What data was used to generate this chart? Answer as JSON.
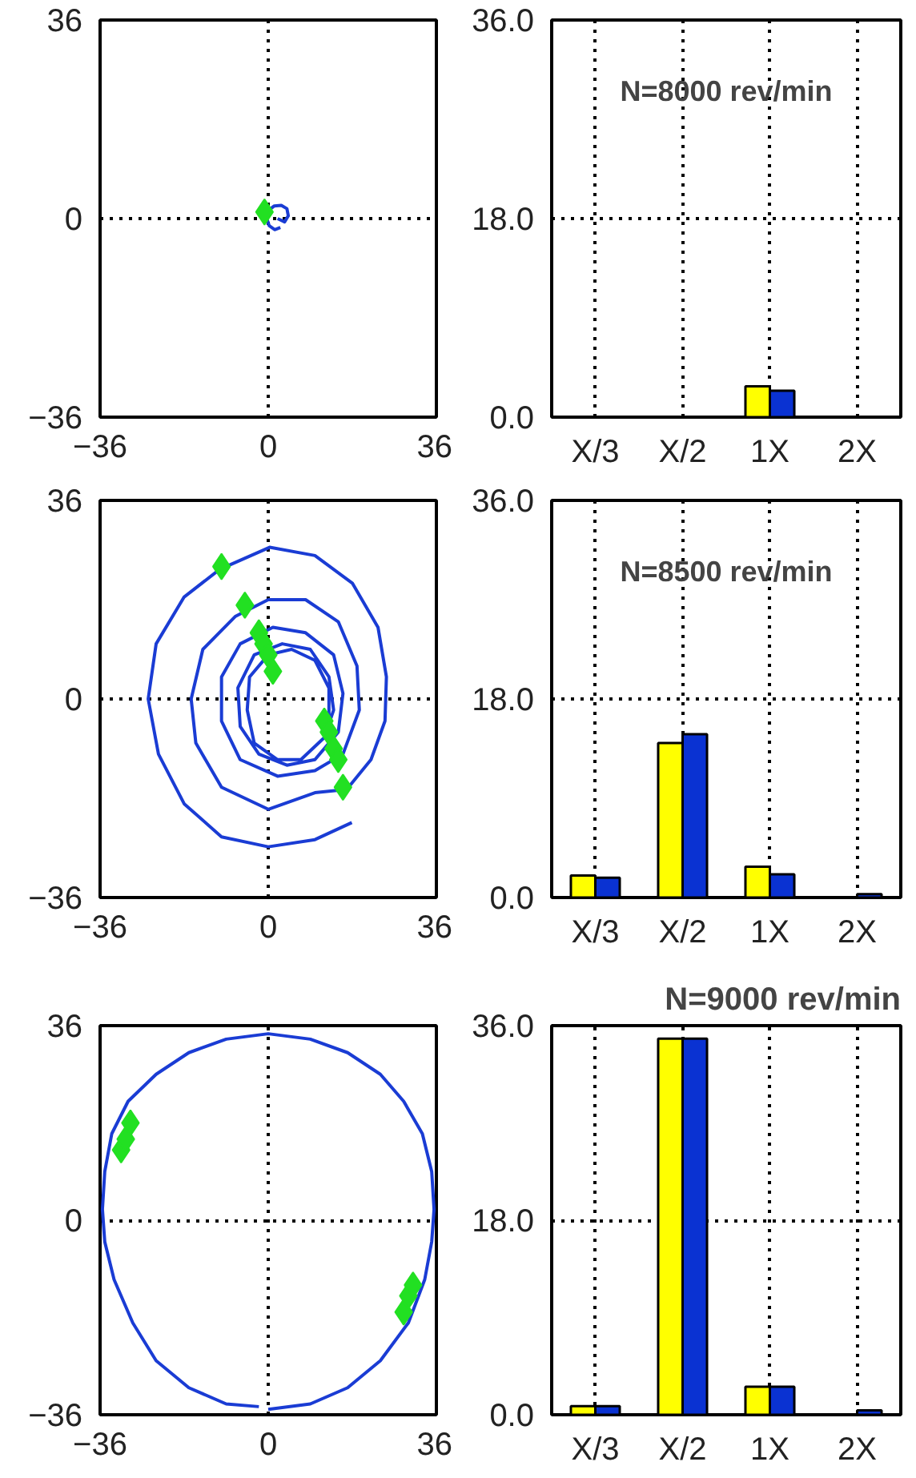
{
  "chart_data": [
    {
      "type": "line",
      "xlim": [
        -36,
        36
      ],
      "ylim": [
        -36,
        36
      ],
      "xticks": [
        -36,
        0,
        36
      ],
      "yticks": [
        -36,
        0,
        36
      ],
      "grid": true,
      "line_style": "solid",
      "series": [
        {
          "color": "#1a3cd4",
          "x": [
            2,
            3.5,
            4.3,
            4,
            2.8,
            1.3,
            0.1,
            -0.3,
            0.2,
            1.4,
            2.6
          ],
          "values": [
            0,
            -0.6,
            0.5,
            1.8,
            2.4,
            2.3,
            1.5,
            0,
            -1.3,
            -2,
            -1.6
          ]
        },
        {
          "type": "scatter",
          "marker": "diamond",
          "color": "#22e022",
          "x": [
            -0.8
          ],
          "values": [
            1.2
          ]
        }
      ]
    },
    {
      "type": "bar",
      "categories": [
        "X/3",
        "X/2",
        "1X",
        "2X"
      ],
      "ylim": [
        0,
        36
      ],
      "yticks": [
        {
          "value": 0,
          "label": "0.0"
        },
        {
          "value": 18,
          "label": "18.0"
        },
        {
          "value": 36,
          "label": "36.0"
        }
      ],
      "grid": true,
      "annotations": [
        "N=8000 rev/min"
      ],
      "series": [
        {
          "color": "#ffff00",
          "values": [
            null,
            null,
            2.8,
            null
          ]
        },
        {
          "color": "#0a32d2",
          "values": [
            null,
            null,
            2.4,
            null
          ]
        }
      ]
    },
    {
      "type": "line",
      "xlim": [
        -36,
        36
      ],
      "ylim": [
        -36,
        36
      ],
      "xticks": [
        -36,
        0,
        36
      ],
      "yticks": [
        -36,
        0,
        36
      ],
      "grid": true,
      "line_style": "solid",
      "series": [
        {
          "color": "#1a3cd4",
          "x": [
            17.9,
            10,
            0,
            -10,
            -18,
            -23.5,
            -25.7,
            -24,
            -18,
            -10.4,
            0.3,
            10,
            18,
            23.5,
            25.3,
            25,
            22,
            16.8,
            10,
            0,
            -10,
            -15.5,
            -16.5,
            -14,
            -7,
            0,
            8,
            15,
            19,
            19.5,
            16,
            10,
            2,
            -6,
            -10,
            -10,
            -6,
            1,
            8,
            14,
            16,
            15,
            10,
            4,
            -2,
            -6,
            -6.5,
            -3,
            3,
            9,
            13,
            14,
            12,
            7,
            2,
            -3,
            -4.5,
            -4,
            0,
            5,
            10,
            13,
            13
          ],
          "values": [
            -22.4,
            -25.5,
            -26.8,
            -25,
            -19,
            -10,
            0,
            10,
            18.5,
            23.5,
            27.5,
            26,
            21,
            13,
            4,
            -4,
            -11,
            -16.4,
            -17,
            -20,
            -16,
            -8,
            0,
            9,
            15,
            18,
            18,
            14,
            6,
            -2,
            -10,
            -13,
            -14,
            -11,
            -4,
            4,
            10,
            13,
            12,
            8,
            1,
            -6,
            -11,
            -12,
            -10,
            -5,
            2,
            8,
            10,
            9,
            4,
            -2,
            -7,
            -11,
            -11,
            -8,
            -2,
            4,
            8,
            9,
            7,
            2,
            -3
          ]
        },
        {
          "type": "scatter",
          "marker": "diamond",
          "color": "#22e022",
          "x": [
            -10,
            -5,
            -2,
            -1,
            0,
            1,
            12,
            13,
            14,
            15,
            16
          ],
          "values": [
            24,
            17,
            12,
            10,
            8,
            5,
            -4,
            -6,
            -9,
            -11,
            -16
          ]
        }
      ]
    },
    {
      "type": "bar",
      "categories": [
        "X/3",
        "X/2",
        "1X",
        "2X"
      ],
      "ylim": [
        0,
        36
      ],
      "yticks": [
        {
          "value": 0,
          "label": "0.0"
        },
        {
          "value": 18,
          "label": "18.0"
        },
        {
          "value": 36,
          "label": "36.0"
        }
      ],
      "grid": true,
      "annotations": [
        "N=8500 rev/min"
      ],
      "series": [
        {
          "color": "#ffff00",
          "values": [
            2,
            14,
            2.8,
            null
          ]
        },
        {
          "color": "#0a32d2",
          "values": [
            1.8,
            14.8,
            2.1,
            0.3
          ]
        }
      ]
    },
    {
      "type": "line",
      "xlim": [
        -36,
        36
      ],
      "ylim": [
        -36,
        36
      ],
      "xticks": [
        -36,
        0,
        36
      ],
      "yticks": [
        -36,
        0,
        36
      ],
      "grid": true,
      "line_style": "solid",
      "series": [
        {
          "color": "#1a3cd4",
          "x": [
            0,
            9,
            17,
            24,
            30,
            33.5,
            35,
            35.5,
            35,
            33,
            29,
            24,
            17,
            9,
            0,
            -9,
            -17,
            -24,
            -30,
            -33.5,
            -35,
            -35.5,
            -35,
            -33,
            -29,
            -24,
            -17,
            -9,
            -2
          ],
          "values": [
            -35,
            -34,
            -31,
            -26,
            -19,
            -11,
            -4,
            2,
            9,
            16,
            22,
            27,
            31,
            33.5,
            34.5,
            33.5,
            31,
            27,
            22,
            16,
            9,
            2,
            -4,
            -11,
            -19,
            -26,
            -31,
            -34,
            -34.5
          ]
        },
        {
          "type": "scatter",
          "marker": "diamond",
          "color": "#22e022",
          "x": [
            -31.5,
            -30.5,
            -29.5,
            29,
            30,
            31
          ],
          "values": [
            13,
            15,
            18,
            -17,
            -14,
            -12
          ]
        }
      ]
    },
    {
      "type": "bar",
      "categories": [
        "X/3",
        "X/2",
        "1X",
        "2X"
      ],
      "ylim": [
        0,
        36
      ],
      "yticks": [
        {
          "value": 0,
          "label": "0.0"
        },
        {
          "value": 18,
          "label": "18.0"
        },
        {
          "value": 36,
          "label": "36.0"
        }
      ],
      "grid": true,
      "title": "N=9000 rev/min",
      "series": [
        {
          "color": "#ffff00",
          "values": [
            0.8,
            34.8,
            2.6,
            null
          ]
        },
        {
          "color": "#0a32d2",
          "values": [
            0.8,
            34.8,
            2.6,
            0.4
          ]
        }
      ]
    }
  ]
}
